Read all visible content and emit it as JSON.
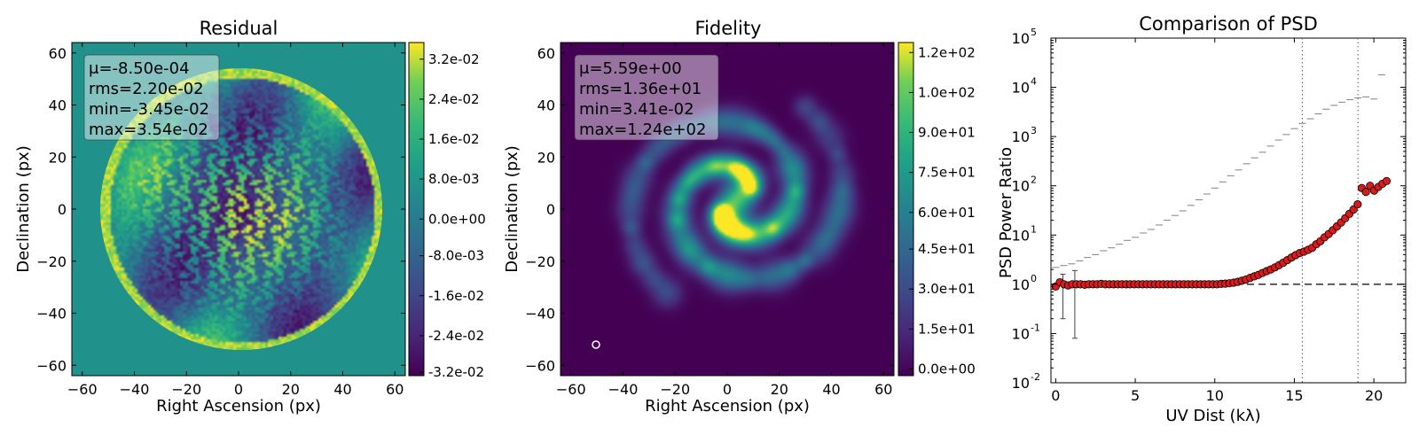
{
  "chart_data": [
    {
      "type": "heatmap",
      "title": "Residual",
      "xlabel": "Right Ascension (px)",
      "ylabel": "Declination (px)",
      "xlim": [
        -64,
        64
      ],
      "ylim": [
        -64,
        64
      ],
      "xticks": [
        "−60",
        "−40",
        "−20",
        "0",
        "20",
        "40",
        "60"
      ],
      "yticks": [
        "−60",
        "−40",
        "−20",
        "0",
        "20",
        "40",
        "60"
      ],
      "colormap": "viridis",
      "clim": [
        -0.0345,
        0.0354
      ],
      "colorbar_ticks": [
        "3.2e-02",
        "2.4e-02",
        "1.6e-02",
        "8.0e-03",
        "0.0e+00",
        "-8.0e-03",
        "-1.6e-02",
        "-2.4e-02",
        "-3.2e-02"
      ],
      "stats": [
        "μ=-8.50e-04",
        "rms=2.20e-02",
        "min=-3.45e-02",
        "max=3.54e-02"
      ],
      "mask_radius_px": 53
    },
    {
      "type": "heatmap",
      "title": "Fidelity",
      "xlabel": "Right Ascension (px)",
      "ylabel": "Declination (px)",
      "xlim": [
        -64,
        64
      ],
      "ylim": [
        -64,
        64
      ],
      "xticks": [
        "−60",
        "−40",
        "−20",
        "0",
        "20",
        "40",
        "60"
      ],
      "yticks": [
        "−60",
        "−40",
        "−20",
        "0",
        "20",
        "40",
        "60"
      ],
      "colormap": "viridis",
      "clim": [
        0,
        124
      ],
      "colorbar_ticks": [
        "1.2e+02",
        "1.0e+02",
        "9.0e+01",
        "7.5e+01",
        "6.0e+01",
        "4.5e+01",
        "3.0e+01",
        "1.5e+01",
        "0.0e+00"
      ],
      "stats": [
        "μ=5.59e+00",
        "rms=1.36e+01",
        "min=3.41e-02",
        "max=1.24e+02"
      ],
      "beam_marker": {
        "x": -51,
        "y": -52
      }
    },
    {
      "type": "scatter",
      "title": "Comparison of PSD",
      "xlabel": "UV Dist (kλ)",
      "ylabel": "PSD Power Ratio",
      "xlim": [
        -0.3,
        22
      ],
      "ylim_log10": [
        -2,
        5
      ],
      "x_ticks": [
        "0",
        "5",
        "10",
        "15",
        "20"
      ],
      "y_ticks": [
        "10^-2",
        "10^-1",
        "10^0",
        "10^1",
        "10^2",
        "10^3",
        "10^4",
        "10^5"
      ],
      "ref_hline_y": 1,
      "vlines_x": [
        15.5,
        19
      ],
      "series": [
        {
          "marker": "red-circle",
          "color": "#d81b1b",
          "x": [
            0.0,
            0.26,
            0.52,
            0.78,
            1.04,
            1.3,
            1.56,
            1.82,
            2.08,
            2.34,
            2.6,
            2.86,
            3.12,
            3.38,
            3.64,
            3.9,
            4.16,
            4.42,
            4.68,
            4.94,
            5.2,
            5.46,
            5.72,
            5.98,
            6.24,
            6.5,
            6.76,
            7.02,
            7.28,
            7.54,
            7.8,
            8.06,
            8.32,
            8.58,
            8.84,
            9.1,
            9.36,
            9.62,
            9.88,
            10.14,
            10.4,
            10.66,
            10.92,
            11.18,
            11.44,
            11.7,
            11.96,
            12.22,
            12.48,
            12.74,
            13.0,
            13.26,
            13.52,
            13.78,
            14.04,
            14.3,
            14.56,
            14.82,
            15.08,
            15.34,
            15.6,
            15.86,
            16.12,
            16.38,
            16.64,
            16.9,
            17.16,
            17.42,
            17.68,
            17.94,
            18.2,
            18.46,
            18.72,
            18.98,
            19.24,
            19.5,
            19.76,
            20.02,
            20.28,
            20.54,
            20.8
          ],
          "y": [
            0.9,
            1.1,
            1.0,
            0.95,
            1.0,
            1.0,
            1.0,
            0.98,
            1.0,
            1.0,
            1.0,
            1.02,
            1.0,
            1.0,
            1.0,
            1.0,
            1.0,
            1.0,
            1.0,
            1.0,
            1.0,
            1.0,
            1.0,
            1.0,
            1.0,
            1.0,
            1.0,
            1.0,
            1.0,
            1.0,
            1.0,
            1.0,
            1.0,
            1.0,
            1.0,
            1.0,
            1.0,
            1.0,
            1.0,
            1.0,
            1.02,
            1.03,
            1.05,
            1.08,
            1.12,
            1.18,
            1.25,
            1.35,
            1.45,
            1.55,
            1.7,
            1.85,
            2.0,
            2.2,
            2.45,
            2.75,
            3.1,
            3.5,
            3.9,
            4.3,
            4.6,
            5.0,
            5.5,
            6.5,
            7.5,
            9.0,
            10.5,
            12.5,
            15.0,
            18.0,
            22.0,
            27.0,
            33.0,
            42.0,
            90.0,
            75.0,
            100.0,
            80.0,
            95.0,
            110.0,
            125.0
          ]
        },
        {
          "marker": "hline-tick",
          "color": "#808080",
          "x": [
            0,
            0.5,
            1,
            1.5,
            2,
            2.5,
            3,
            3.5,
            4,
            4.5,
            5,
            5.5,
            6,
            6.5,
            7,
            7.5,
            8,
            8.5,
            9,
            9.5,
            10,
            10.5,
            11,
            11.5,
            12,
            12.5,
            13,
            13.5,
            14,
            14.5,
            15,
            15.5,
            16,
            16.5,
            17,
            17.5,
            18,
            18.5,
            19,
            19.5,
            20,
            20.5
          ],
          "y": [
            2.2,
            2.4,
            2.6,
            3.0,
            3.5,
            4.0,
            4.8,
            5.5,
            6.5,
            7.8,
            9.0,
            11,
            13,
            16,
            20,
            25,
            31,
            40,
            52,
            68,
            90,
            120,
            160,
            210,
            280,
            370,
            480,
            640,
            850,
            1100,
            1450,
            1850,
            2300,
            2900,
            3600,
            4300,
            5000,
            5600,
            6100,
            6400,
            5800,
            18000
          ]
        }
      ],
      "error_bars": [
        {
          "x": 0.45,
          "y": 1.0,
          "lo": 0.2,
          "hi": 1.6
        },
        {
          "x": 1.2,
          "y": 1.0,
          "lo": 0.08,
          "hi": 1.9
        }
      ]
    }
  ]
}
